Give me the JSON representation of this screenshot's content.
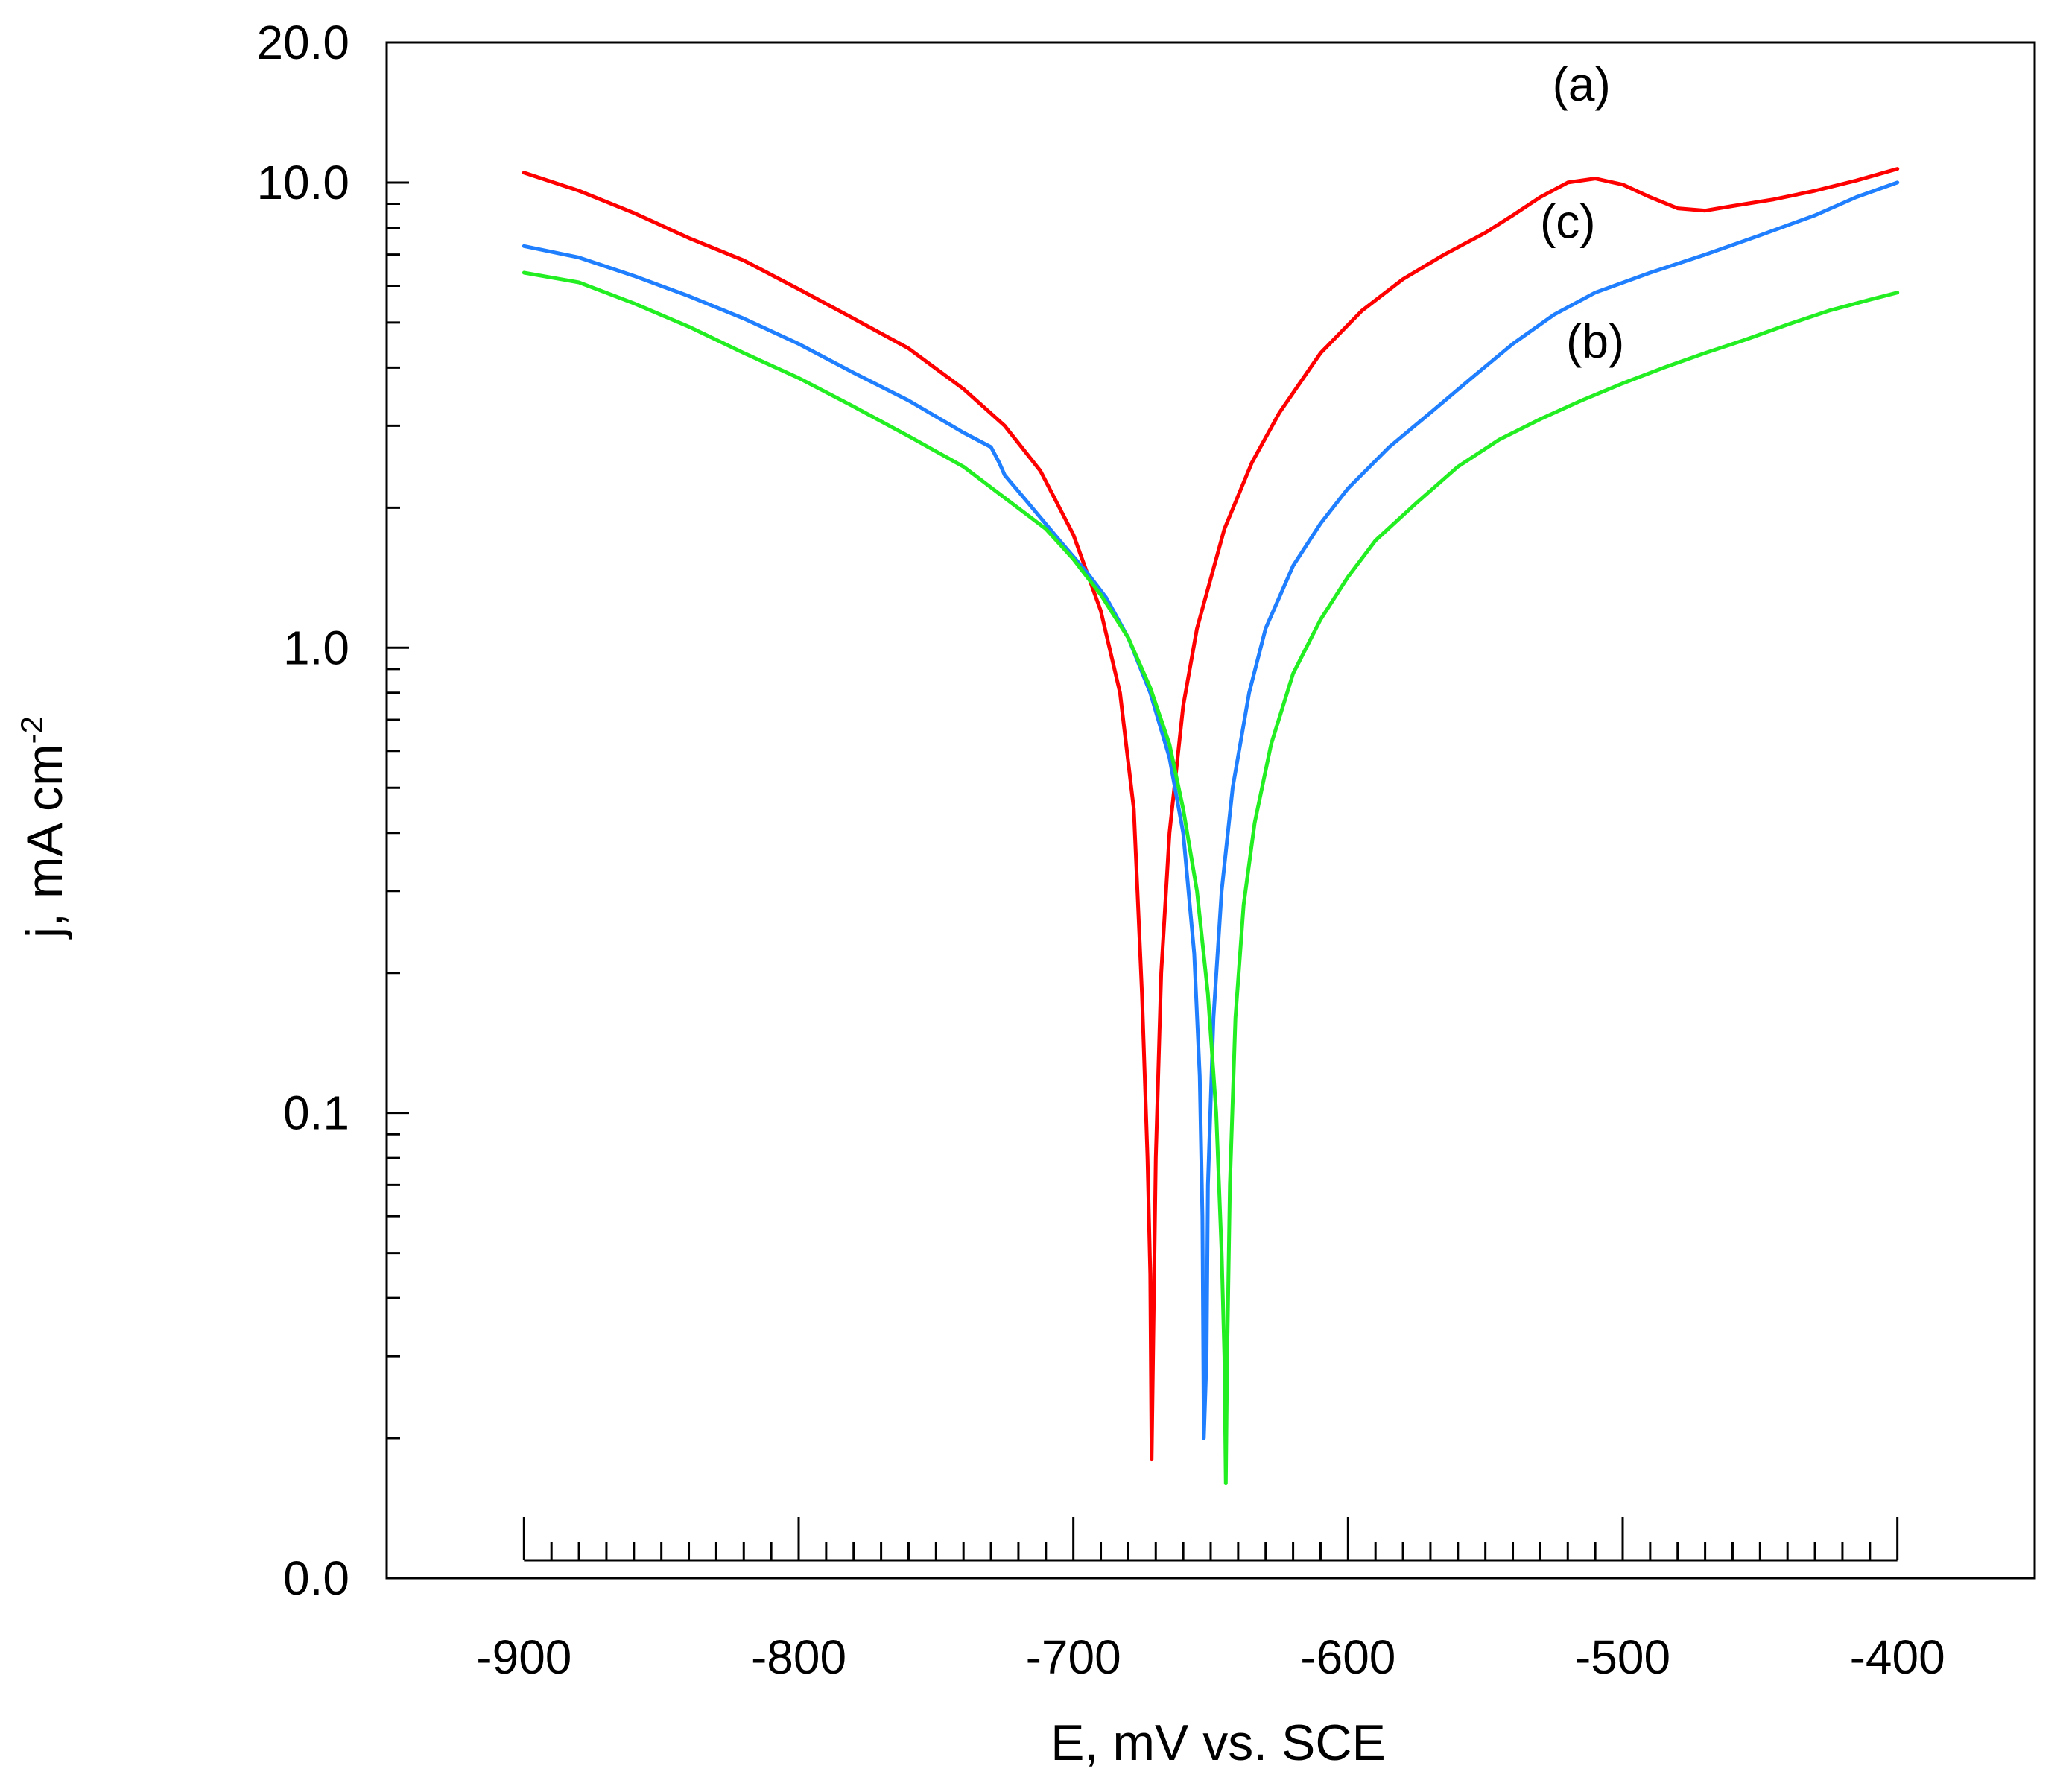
{
  "chart_data": {
    "type": "line",
    "title": "",
    "xlabel": "E, mV vs. SCE",
    "ylabel": "j, mA cm",
    "ylabel_superscript": "-2",
    "yscale": "log",
    "xlim": [
      -950,
      -350
    ],
    "ylim": [
      0.01,
      20
    ],
    "x_ticks": [
      -900,
      -800,
      -700,
      -600,
      -500,
      -400
    ],
    "x_tick_labels": [
      "-900",
      "-800",
      "-700",
      "-600",
      "-500",
      "-400"
    ],
    "y_ticks": [
      0.01,
      0.1,
      1,
      10,
      20
    ],
    "y_tick_labels": [
      "0.0",
      "0.1",
      "1.0",
      "10.0",
      "20.0"
    ],
    "grid": false,
    "series": [
      {
        "name": "(a)",
        "color": "#ff0000",
        "points": [
          [
            -900,
            10.5
          ],
          [
            -880,
            9.6
          ],
          [
            -860,
            8.6
          ],
          [
            -840,
            7.6
          ],
          [
            -820,
            6.8
          ],
          [
            -800,
            5.9
          ],
          [
            -780,
            5.1
          ],
          [
            -760,
            4.4
          ],
          [
            -740,
            3.6
          ],
          [
            -725,
            3.0
          ],
          [
            -712,
            2.4
          ],
          [
            -700,
            1.75
          ],
          [
            -690,
            1.2
          ],
          [
            -683,
            0.8
          ],
          [
            -678,
            0.45
          ],
          [
            -675,
            0.18
          ],
          [
            -673,
            0.08
          ],
          [
            -672,
            0.045
          ],
          [
            -671.5,
            0.018
          ],
          [
            -671,
            0.03
          ],
          [
            -670,
            0.08
          ],
          [
            -668,
            0.2
          ],
          [
            -665,
            0.4
          ],
          [
            -660,
            0.75
          ],
          [
            -655,
            1.1
          ],
          [
            -645,
            1.8
          ],
          [
            -635,
            2.5
          ],
          [
            -625,
            3.2
          ],
          [
            -610,
            4.3
          ],
          [
            -595,
            5.3
          ],
          [
            -580,
            6.2
          ],
          [
            -565,
            7.0
          ],
          [
            -550,
            7.8
          ],
          [
            -540,
            8.5
          ],
          [
            -530,
            9.3
          ],
          [
            -520,
            10.0
          ],
          [
            -510,
            10.2
          ],
          [
            -500,
            9.9
          ],
          [
            -490,
            9.3
          ],
          [
            -480,
            8.8
          ],
          [
            -470,
            8.7
          ],
          [
            -460,
            8.9
          ],
          [
            -445,
            9.2
          ],
          [
            -430,
            9.6
          ],
          [
            -415,
            10.1
          ],
          [
            -400,
            10.7
          ]
        ]
      },
      {
        "name": "(c)",
        "color": "#1f7fff",
        "points": [
          [
            -900,
            7.3
          ],
          [
            -880,
            6.9
          ],
          [
            -860,
            6.3
          ],
          [
            -840,
            5.7
          ],
          [
            -820,
            5.1
          ],
          [
            -800,
            4.5
          ],
          [
            -780,
            3.9
          ],
          [
            -760,
            3.4
          ],
          [
            -740,
            2.9
          ],
          [
            -730,
            2.7
          ],
          [
            -727,
            2.5
          ],
          [
            -725,
            2.35
          ],
          [
            -715,
            2.0
          ],
          [
            -705,
            1.7
          ],
          [
            -695,
            1.45
          ],
          [
            -688,
            1.28
          ],
          [
            -680,
            1.05
          ],
          [
            -672,
            0.8
          ],
          [
            -665,
            0.58
          ],
          [
            -660,
            0.4
          ],
          [
            -656,
            0.22
          ],
          [
            -654,
            0.12
          ],
          [
            -653,
            0.06
          ],
          [
            -652.5,
            0.02
          ],
          [
            -651.5,
            0.03
          ],
          [
            -651,
            0.07
          ],
          [
            -649,
            0.16
          ],
          [
            -646,
            0.3
          ],
          [
            -642,
            0.5
          ],
          [
            -636,
            0.8
          ],
          [
            -630,
            1.1
          ],
          [
            -620,
            1.5
          ],
          [
            -610,
            1.85
          ],
          [
            -600,
            2.2
          ],
          [
            -585,
            2.7
          ],
          [
            -570,
            3.2
          ],
          [
            -555,
            3.8
          ],
          [
            -540,
            4.5
          ],
          [
            -525,
            5.2
          ],
          [
            -510,
            5.8
          ],
          [
            -490,
            6.4
          ],
          [
            -470,
            7.0
          ],
          [
            -450,
            7.7
          ],
          [
            -430,
            8.5
          ],
          [
            -415,
            9.3
          ],
          [
            -400,
            10.0
          ]
        ]
      },
      {
        "name": "(b)",
        "color": "#22ee22",
        "points": [
          [
            -900,
            6.4
          ],
          [
            -880,
            6.1
          ],
          [
            -860,
            5.5
          ],
          [
            -840,
            4.9
          ],
          [
            -820,
            4.3
          ],
          [
            -800,
            3.8
          ],
          [
            -780,
            3.3
          ],
          [
            -760,
            2.85
          ],
          [
            -740,
            2.45
          ],
          [
            -725,
            2.1
          ],
          [
            -710,
            1.8
          ],
          [
            -700,
            1.55
          ],
          [
            -690,
            1.3
          ],
          [
            -680,
            1.05
          ],
          [
            -672,
            0.82
          ],
          [
            -665,
            0.62
          ],
          [
            -660,
            0.45
          ],
          [
            -655,
            0.3
          ],
          [
            -651,
            0.18
          ],
          [
            -648,
            0.1
          ],
          [
            -646,
            0.05
          ],
          [
            -645,
            0.03
          ],
          [
            -644.5,
            0.016
          ],
          [
            -644,
            0.03
          ],
          [
            -643,
            0.07
          ],
          [
            -641,
            0.16
          ],
          [
            -638,
            0.28
          ],
          [
            -634,
            0.42
          ],
          [
            -628,
            0.62
          ],
          [
            -620,
            0.88
          ],
          [
            -610,
            1.15
          ],
          [
            -600,
            1.42
          ],
          [
            -590,
            1.7
          ],
          [
            -575,
            2.05
          ],
          [
            -560,
            2.45
          ],
          [
            -545,
            2.8
          ],
          [
            -530,
            3.1
          ],
          [
            -515,
            3.4
          ],
          [
            -500,
            3.7
          ],
          [
            -485,
            4.0
          ],
          [
            -470,
            4.3
          ],
          [
            -455,
            4.6
          ],
          [
            -440,
            4.95
          ],
          [
            -425,
            5.3
          ],
          [
            -410,
            5.6
          ],
          [
            -400,
            5.8
          ]
        ]
      }
    ],
    "annotations": [
      {
        "text": "(a)",
        "x": -515,
        "y": 15
      },
      {
        "text": "(c)",
        "x": -520,
        "y": 7.6
      },
      {
        "text": "(b)",
        "x": -510,
        "y": 4.2
      }
    ]
  }
}
